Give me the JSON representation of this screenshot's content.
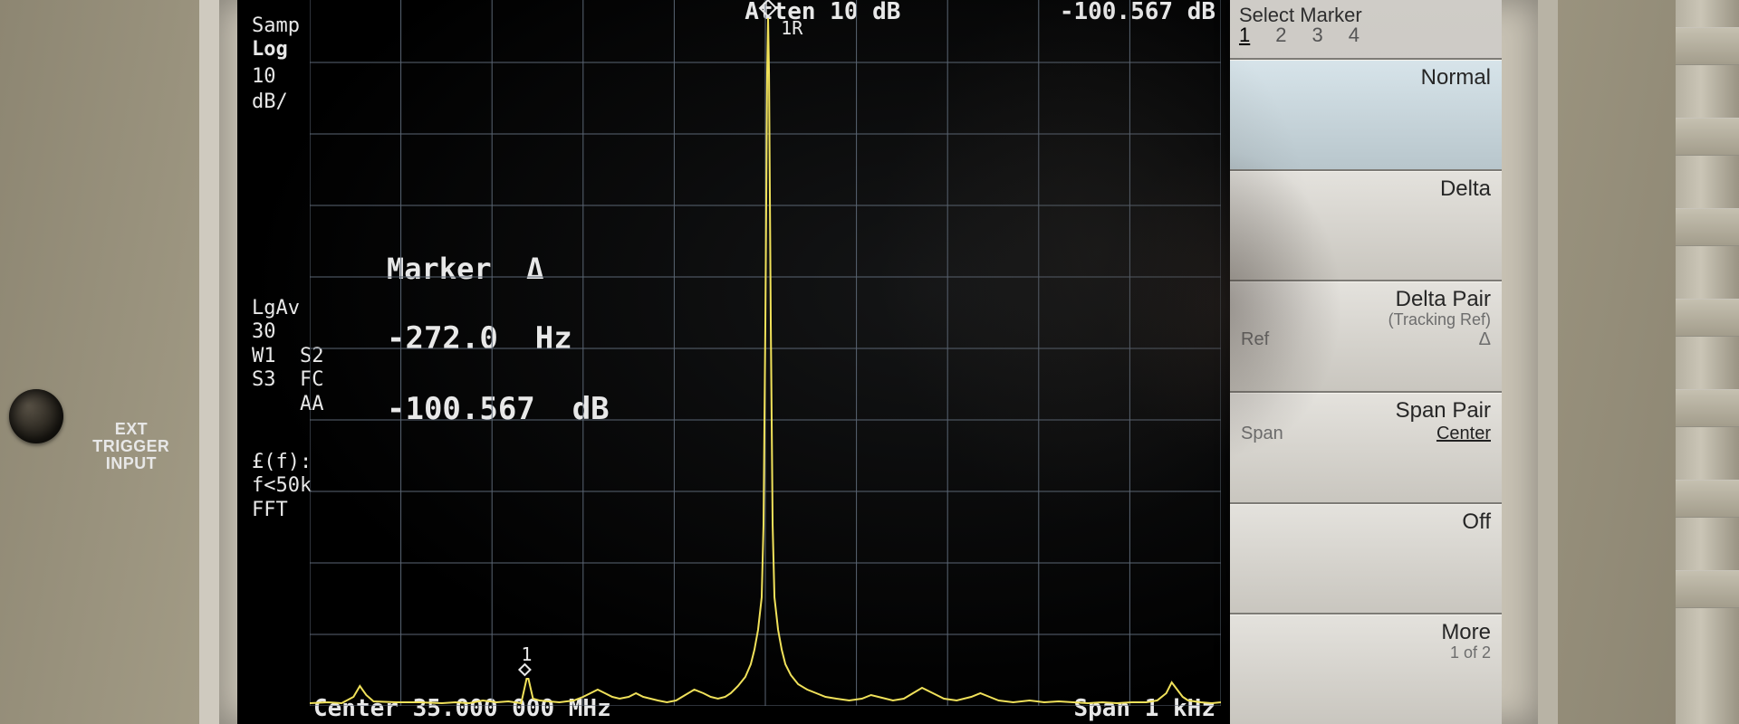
{
  "instrument": {
    "port_label": "EXT\nTRIGGER\nINPUT"
  },
  "header": {
    "atten": "Atten 10 dB",
    "delta_db": "-100.567 dB"
  },
  "left_column": {
    "l1": "Samp",
    "l2": "Log",
    "l3": "10",
    "l4": "dB/",
    "group2": "LgAv\n30\nW1  S2\nS3  FC\n    AA",
    "group3": "£(f):\nf<50k\nFFT"
  },
  "marker": {
    "title": "Marker  Δ",
    "freq": "-272.0  Hz",
    "amp": "-100.567  dB",
    "label": "1R"
  },
  "footer": {
    "center": "Center 35.000 000 MHz",
    "span": "Span 1 kHz"
  },
  "menu": {
    "title": "Select Marker",
    "nums": [
      "1",
      "2",
      "3",
      "4"
    ],
    "selected_num": "1",
    "buttons": [
      {
        "label": "Normal",
        "active": true
      },
      {
        "label": "Delta"
      },
      {
        "label": "Delta Pair",
        "sub": "(Tracking Ref)",
        "pair_left": "Ref",
        "pair_right": "Δ"
      },
      {
        "label": "Span Pair",
        "pair_left": "Span",
        "pair_right": "Center",
        "pair_sel": "right"
      },
      {
        "label": "Off"
      },
      {
        "label": "More",
        "sub": "1 of 2"
      }
    ]
  },
  "chart": {
    "type": "line",
    "grid": {
      "cols": 10,
      "rows": 10,
      "color": "#5a6573"
    },
    "trace_color": "#f0e15a",
    "background": "#000000",
    "xlim": [
      0,
      1000
    ],
    "ylim_divisions": 10,
    "marker_x": 503,
    "points": [
      [
        0,
        3
      ],
      [
        20,
        4
      ],
      [
        35,
        3
      ],
      [
        48,
        10
      ],
      [
        55,
        22
      ],
      [
        62,
        12
      ],
      [
        70,
        5
      ],
      [
        95,
        4
      ],
      [
        120,
        4
      ],
      [
        145,
        3
      ],
      [
        160,
        4
      ],
      [
        175,
        3
      ],
      [
        190,
        6
      ],
      [
        205,
        4
      ],
      [
        218,
        5
      ],
      [
        225,
        4
      ],
      [
        232,
        3
      ],
      [
        238,
        30
      ],
      [
        240,
        30
      ],
      [
        245,
        8
      ],
      [
        252,
        6
      ],
      [
        262,
        5
      ],
      [
        274,
        4
      ],
      [
        290,
        6
      ],
      [
        300,
        10
      ],
      [
        308,
        14
      ],
      [
        316,
        18
      ],
      [
        324,
        14
      ],
      [
        332,
        10
      ],
      [
        340,
        8
      ],
      [
        350,
        10
      ],
      [
        358,
        14
      ],
      [
        366,
        10
      ],
      [
        374,
        8
      ],
      [
        382,
        6
      ],
      [
        392,
        4
      ],
      [
        402,
        6
      ],
      [
        412,
        12
      ],
      [
        422,
        18
      ],
      [
        432,
        14
      ],
      [
        440,
        10
      ],
      [
        448,
        8
      ],
      [
        456,
        10
      ],
      [
        462,
        14
      ],
      [
        470,
        22
      ],
      [
        478,
        32
      ],
      [
        484,
        46
      ],
      [
        488,
        62
      ],
      [
        492,
        84
      ],
      [
        496,
        120
      ],
      [
        498,
        200
      ],
      [
        500,
        420
      ],
      [
        502,
        700
      ],
      [
        503,
        760
      ],
      [
        504,
        700
      ],
      [
        506,
        420
      ],
      [
        508,
        200
      ],
      [
        510,
        120
      ],
      [
        514,
        84
      ],
      [
        518,
        62
      ],
      [
        522,
        46
      ],
      [
        528,
        34
      ],
      [
        536,
        24
      ],
      [
        546,
        18
      ],
      [
        556,
        14
      ],
      [
        566,
        10
      ],
      [
        578,
        8
      ],
      [
        592,
        6
      ],
      [
        606,
        8
      ],
      [
        616,
        12
      ],
      [
        624,
        10
      ],
      [
        632,
        8
      ],
      [
        640,
        6
      ],
      [
        652,
        8
      ],
      [
        662,
        14
      ],
      [
        672,
        20
      ],
      [
        680,
        16
      ],
      [
        688,
        12
      ],
      [
        696,
        8
      ],
      [
        710,
        6
      ],
      [
        726,
        10
      ],
      [
        736,
        14
      ],
      [
        746,
        10
      ],
      [
        756,
        6
      ],
      [
        772,
        4
      ],
      [
        790,
        6
      ],
      [
        806,
        4
      ],
      [
        822,
        5
      ],
      [
        838,
        4
      ],
      [
        854,
        3
      ],
      [
        870,
        4
      ],
      [
        886,
        3
      ],
      [
        902,
        4
      ],
      [
        918,
        4
      ],
      [
        930,
        6
      ],
      [
        940,
        14
      ],
      [
        946,
        26
      ],
      [
        952,
        18
      ],
      [
        958,
        10
      ],
      [
        964,
        6
      ],
      [
        978,
        4
      ],
      [
        990,
        3
      ],
      [
        1000,
        4
      ]
    ],
    "sub_marker": {
      "x": 236,
      "label": "1"
    }
  }
}
